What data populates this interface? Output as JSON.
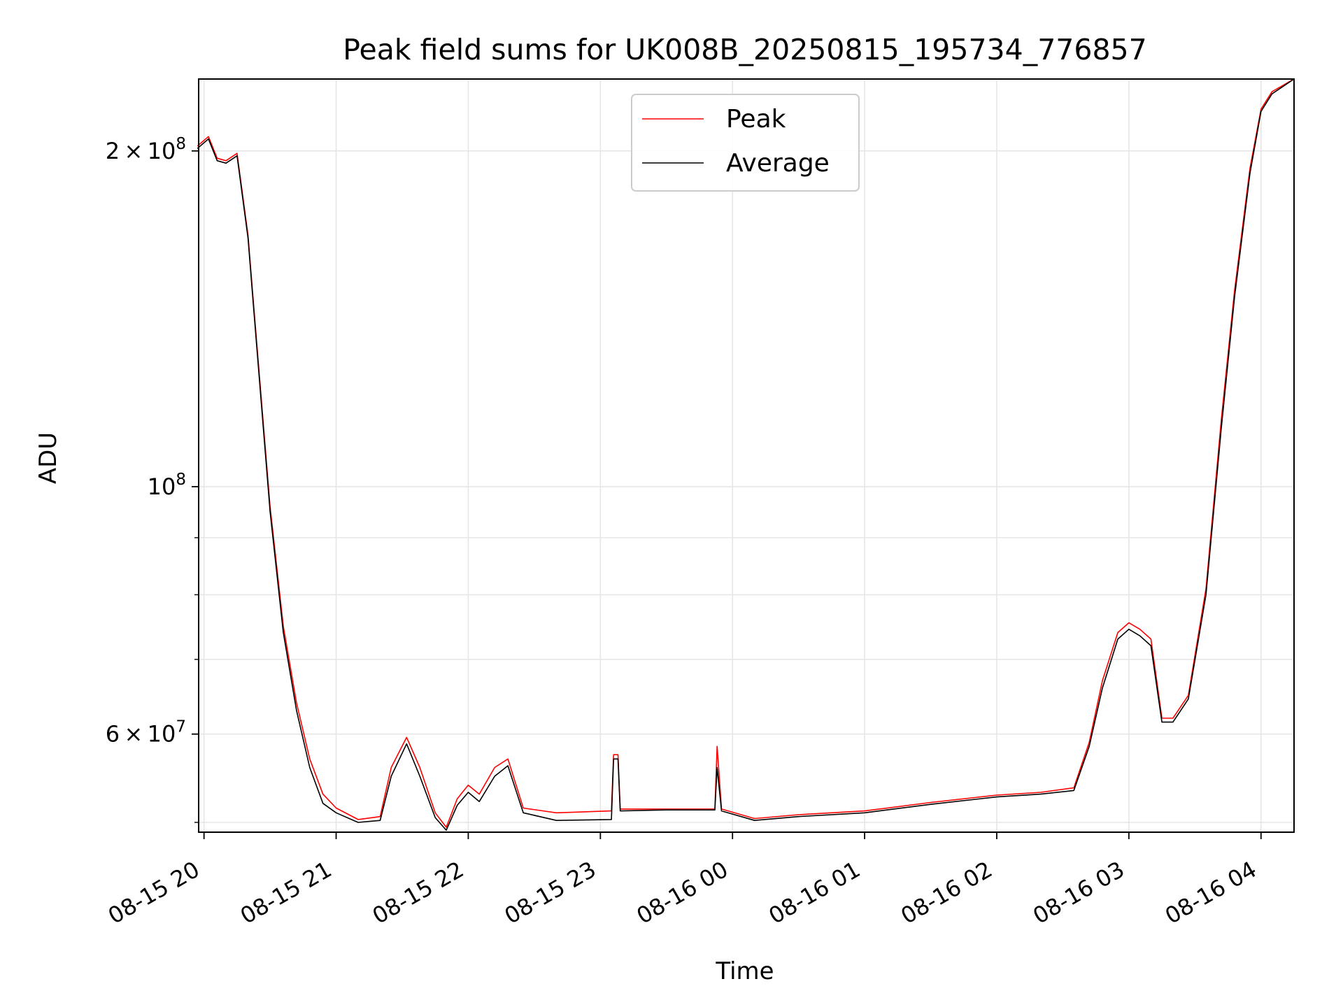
{
  "chart_data": {
    "type": "line",
    "title": "Peak field sums for UK008B_20250815_195734_776857",
    "xlabel": "Time",
    "ylabel": "ADU",
    "yscale": "log",
    "ylim": [
      49000000,
      232000000
    ],
    "xlim": [
      "2025-08-15 19:57:34",
      "2025-08-16 04:15:00"
    ],
    "grid": true,
    "legend_position": "top-center",
    "x_ticks": [
      {
        "t": "2025-08-15 20:00",
        "label": "08-15 20"
      },
      {
        "t": "2025-08-15 21:00",
        "label": "08-15 21"
      },
      {
        "t": "2025-08-15 22:00",
        "label": "08-15 22"
      },
      {
        "t": "2025-08-15 23:00",
        "label": "08-15 23"
      },
      {
        "t": "2025-08-16 00:00",
        "label": "08-16 00"
      },
      {
        "t": "2025-08-16 01:00",
        "label": "08-16 01"
      },
      {
        "t": "2025-08-16 02:00",
        "label": "08-16 02"
      },
      {
        "t": "2025-08-16 03:00",
        "label": "08-16 03"
      },
      {
        "t": "2025-08-16 04:00",
        "label": "08-16 04"
      }
    ],
    "y_ticks": [
      {
        "value": 200000000,
        "mantissa": "2",
        "exponent": "8"
      },
      {
        "value": 100000000,
        "mantissa": "",
        "exponent": "8"
      },
      {
        "value": 60000000,
        "mantissa": "6",
        "exponent": "7"
      }
    ],
    "y_minor_ticks": [
      50000000,
      70000000,
      80000000,
      90000000
    ],
    "series": [
      {
        "name": "Peak",
        "color": "#ff0000",
        "x": [
          "2025-08-15 19:57",
          "2025-08-15 20:02",
          "2025-08-15 20:06",
          "2025-08-15 20:10",
          "2025-08-15 20:15",
          "2025-08-15 20:20",
          "2025-08-15 20:22",
          "2025-08-15 20:30",
          "2025-08-15 20:36",
          "2025-08-15 20:42",
          "2025-08-15 20:48",
          "2025-08-15 20:54",
          "2025-08-15 21:00",
          "2025-08-15 21:10",
          "2025-08-15 21:20",
          "2025-08-15 21:25",
          "2025-08-15 21:32",
          "2025-08-15 21:38",
          "2025-08-15 21:45",
          "2025-08-15 21:50",
          "2025-08-15 21:55",
          "2025-08-15 22:00",
          "2025-08-15 22:05",
          "2025-08-15 22:12",
          "2025-08-15 22:18",
          "2025-08-15 22:25",
          "2025-08-15 22:40",
          "2025-08-15 23:05",
          "2025-08-15 23:06",
          "2025-08-15 23:08",
          "2025-08-15 23:09",
          "2025-08-15 23:30",
          "2025-08-15 23:52",
          "2025-08-15 23:53",
          "2025-08-15 23:55",
          "2025-08-16 00:10",
          "2025-08-16 00:30",
          "2025-08-16 01:00",
          "2025-08-16 01:30",
          "2025-08-16 02:00",
          "2025-08-16 02:20",
          "2025-08-16 02:35",
          "2025-08-16 02:42",
          "2025-08-16 02:48",
          "2025-08-16 02:55",
          "2025-08-16 03:00",
          "2025-08-16 03:05",
          "2025-08-16 03:10",
          "2025-08-16 03:15",
          "2025-08-16 03:20",
          "2025-08-16 03:27",
          "2025-08-16 03:35",
          "2025-08-16 03:42",
          "2025-08-16 03:48",
          "2025-08-16 03:55",
          "2025-08-16 04:00",
          "2025-08-16 04:05",
          "2025-08-16 04:15"
        ],
        "values": [
          202000000,
          206000000,
          197000000,
          196000000,
          199000000,
          168000000,
          150000000,
          96000000,
          75000000,
          64000000,
          57000000,
          53000000,
          51500000,
          50300000,
          50600000,
          56000000,
          59600000,
          56000000,
          51000000,
          49500000,
          52500000,
          54000000,
          53000000,
          56000000,
          57000000,
          51500000,
          51000000,
          51200000,
          57500000,
          57500000,
          51400000,
          51400000,
          51400000,
          58500000,
          51400000,
          50400000,
          50800000,
          51200000,
          52100000,
          52900000,
          53200000,
          53700000,
          59000000,
          67000000,
          74000000,
          75500000,
          74500000,
          73000000,
          62000000,
          62000000,
          65000000,
          81000000,
          115000000,
          150000000,
          193000000,
          218000000,
          226000000,
          232000000
        ]
      },
      {
        "name": "Average",
        "color": "#000000",
        "x": [
          "2025-08-15 19:57",
          "2025-08-15 20:02",
          "2025-08-15 20:06",
          "2025-08-15 20:10",
          "2025-08-15 20:15",
          "2025-08-15 20:20",
          "2025-08-15 20:22",
          "2025-08-15 20:30",
          "2025-08-15 20:36",
          "2025-08-15 20:42",
          "2025-08-15 20:48",
          "2025-08-15 20:54",
          "2025-08-15 21:00",
          "2025-08-15 21:10",
          "2025-08-15 21:20",
          "2025-08-15 21:25",
          "2025-08-15 21:32",
          "2025-08-15 21:38",
          "2025-08-15 21:45",
          "2025-08-15 21:50",
          "2025-08-15 21:55",
          "2025-08-15 22:00",
          "2025-08-15 22:05",
          "2025-08-15 22:12",
          "2025-08-15 22:18",
          "2025-08-15 22:25",
          "2025-08-15 22:40",
          "2025-08-15 23:05",
          "2025-08-15 23:06",
          "2025-08-15 23:08",
          "2025-08-15 23:09",
          "2025-08-15 23:30",
          "2025-08-15 23:52",
          "2025-08-15 23:53",
          "2025-08-15 23:55",
          "2025-08-16 00:10",
          "2025-08-16 00:30",
          "2025-08-16 01:00",
          "2025-08-16 01:30",
          "2025-08-16 02:00",
          "2025-08-16 02:20",
          "2025-08-16 02:35",
          "2025-08-16 02:42",
          "2025-08-16 02:48",
          "2025-08-16 02:55",
          "2025-08-16 03:00",
          "2025-08-16 03:05",
          "2025-08-16 03:10",
          "2025-08-16 03:15",
          "2025-08-16 03:20",
          "2025-08-16 03:27",
          "2025-08-16 03:35",
          "2025-08-16 03:42",
          "2025-08-16 03:48",
          "2025-08-16 03:55",
          "2025-08-16 04:00",
          "2025-08-16 04:05",
          "2025-08-16 04:15"
        ],
        "values": [
          201000000,
          205000000,
          196000000,
          195000000,
          198000000,
          167000000,
          149000000,
          95000000,
          74000000,
          63000000,
          56000000,
          52000000,
          51000000,
          50000000,
          50200000,
          55000000,
          58800000,
          55000000,
          50500000,
          49200000,
          51800000,
          53200000,
          52200000,
          55000000,
          56200000,
          51000000,
          50200000,
          50300000,
          57000000,
          57000000,
          51200000,
          51300000,
          51300000,
          56000000,
          51200000,
          50200000,
          50600000,
          51000000,
          51900000,
          52700000,
          53000000,
          53400000,
          58500000,
          66000000,
          73000000,
          74500000,
          73500000,
          72000000,
          61500000,
          61500000,
          64500000,
          80000000,
          113000000,
          148000000,
          191000000,
          217000000,
          225000000,
          232000000
        ]
      }
    ]
  }
}
